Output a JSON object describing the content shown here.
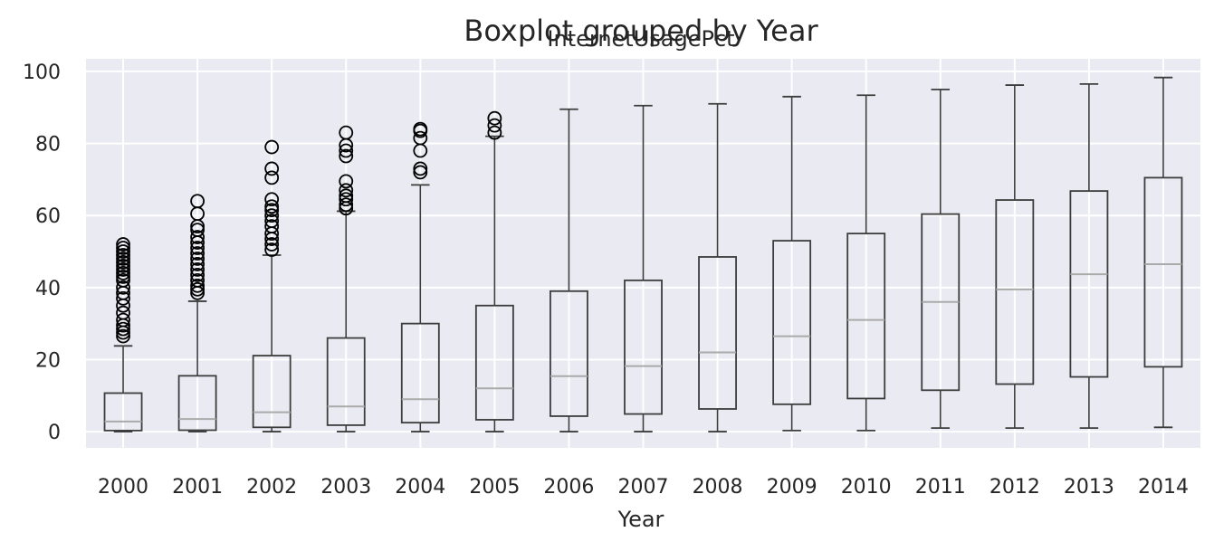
{
  "chart_data": {
    "type": "boxplot",
    "title": "Boxplot grouped by Year",
    "subtitle": "InternetUsagePct",
    "xlabel": "Year",
    "ylabel": "",
    "ylim": [
      -4.5,
      103.5
    ],
    "yticks": [
      0,
      20,
      40,
      60,
      80,
      100
    ],
    "grid": true,
    "categories": [
      "2000",
      "2001",
      "2002",
      "2003",
      "2004",
      "2005",
      "2006",
      "2007",
      "2008",
      "2009",
      "2010",
      "2011",
      "2012",
      "2013",
      "2014"
    ],
    "boxes": [
      {
        "whisker_low": 0.0,
        "q1": 0.3,
        "median": 2.8,
        "q3": 10.7,
        "whisker_high": 23.8,
        "outliers": [
          26.5,
          27.5,
          28.5,
          29.5,
          31,
          33,
          35,
          37,
          38.5,
          40,
          42,
          43,
          44,
          45,
          46,
          47,
          48,
          49,
          50,
          51,
          52
        ]
      },
      {
        "whisker_low": 0.0,
        "q1": 0.4,
        "median": 3.5,
        "q3": 15.5,
        "whisker_high": 36.2,
        "outliers": [
          38.5,
          39.5,
          40.5,
          42,
          43.5,
          45,
          46.5,
          48,
          49.5,
          51,
          52.5,
          54,
          56,
          57,
          60.5,
          64
        ]
      },
      {
        "whisker_low": 0.0,
        "q1": 1.2,
        "median": 5.4,
        "q3": 21.1,
        "whisker_high": 49.0,
        "outliers": [
          50.5,
          52,
          53.5,
          55,
          57,
          58.5,
          60,
          61.5,
          62.5,
          64.5,
          70.5,
          73,
          79
        ]
      },
      {
        "whisker_low": 0.0,
        "q1": 1.8,
        "median": 7.0,
        "q3": 26.0,
        "whisker_high": 61.2,
        "outliers": [
          62,
          63,
          64.5,
          65.5,
          67,
          69.5,
          76.5,
          78,
          79.5,
          83
        ]
      },
      {
        "whisker_low": 0.0,
        "q1": 2.5,
        "median": 9.0,
        "q3": 30.0,
        "whisker_high": 68.5,
        "outliers": [
          72,
          73,
          78,
          81.5,
          83.5,
          84
        ]
      },
      {
        "whisker_low": 0.0,
        "q1": 3.3,
        "median": 12.0,
        "q3": 35.0,
        "whisker_high": 82.0,
        "outliers": [
          83,
          85,
          87
        ]
      },
      {
        "whisker_low": 0.0,
        "q1": 4.3,
        "median": 15.4,
        "q3": 39.0,
        "whisker_high": 89.5,
        "outliers": []
      },
      {
        "whisker_low": 0.0,
        "q1": 4.9,
        "median": 18.2,
        "q3": 42.0,
        "whisker_high": 90.5,
        "outliers": []
      },
      {
        "whisker_low": 0.0,
        "q1": 6.3,
        "median": 22.0,
        "q3": 48.5,
        "whisker_high": 91.0,
        "outliers": []
      },
      {
        "whisker_low": 0.3,
        "q1": 7.6,
        "median": 26.5,
        "q3": 53.0,
        "whisker_high": 93.0,
        "outliers": []
      },
      {
        "whisker_low": 0.3,
        "q1": 9.2,
        "median": 31.0,
        "q3": 55.0,
        "whisker_high": 93.4,
        "outliers": []
      },
      {
        "whisker_low": 1.0,
        "q1": 11.5,
        "median": 36.0,
        "q3": 60.4,
        "whisker_high": 95.0,
        "outliers": []
      },
      {
        "whisker_low": 1.0,
        "q1": 13.2,
        "median": 39.5,
        "q3": 64.3,
        "whisker_high": 96.2,
        "outliers": []
      },
      {
        "whisker_low": 1.0,
        "q1": 15.2,
        "median": 43.7,
        "q3": 66.8,
        "whisker_high": 96.5,
        "outliers": []
      },
      {
        "whisker_low": 1.2,
        "q1": 18.0,
        "median": 46.5,
        "q3": 70.5,
        "whisker_high": 98.3,
        "outliers": []
      }
    ],
    "colors": {
      "plot_background": "#eaeaf2",
      "grid": "#ffffff",
      "box_edge": "#3d3d3d",
      "median": "#aaaaaa",
      "outlier": "#000000",
      "text": "#262626"
    }
  }
}
